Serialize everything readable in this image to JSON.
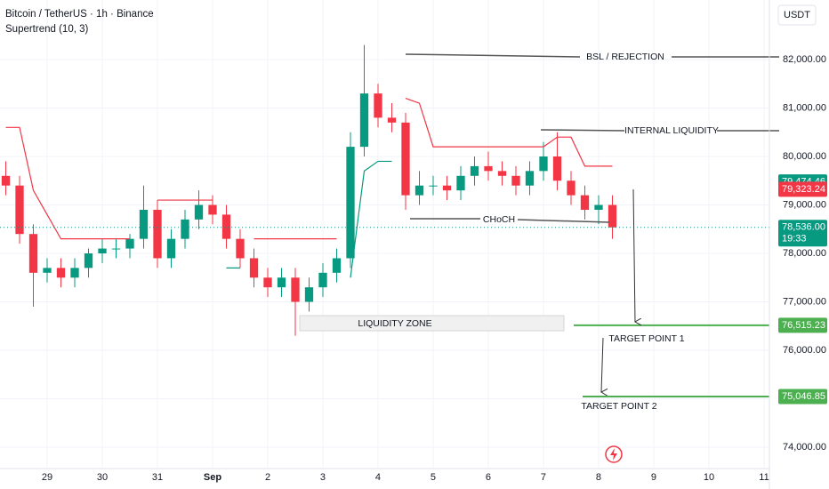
{
  "header": {
    "symbol": "Bitcoin / TetherUS · 1h · Binance",
    "indicator": "Supertrend (10, 3)",
    "currency": "USDT"
  },
  "chart_data": {
    "type": "candlestick",
    "xlim": [
      -0.855,
      13.097
    ],
    "ylim": [
      73560,
      83229
    ],
    "xticks": [
      {
        "value": 0,
        "label": "29"
      },
      {
        "value": 1,
        "label": "30"
      },
      {
        "value": 2,
        "label": "31"
      },
      {
        "value": 3,
        "label": "Sep"
      },
      {
        "value": 4,
        "label": "2"
      },
      {
        "value": 5,
        "label": "3"
      },
      {
        "value": 6,
        "label": "4"
      },
      {
        "value": 7,
        "label": "5"
      },
      {
        "value": 8,
        "label": "6"
      },
      {
        "value": 9,
        "label": "7"
      },
      {
        "value": 10,
        "label": "8"
      },
      {
        "value": 11,
        "label": "9"
      },
      {
        "value": 12,
        "label": "10"
      },
      {
        "value": 13,
        "label": "11"
      }
    ],
    "yticks": [
      {
        "value": 74000,
        "label": "74,000.00"
      },
      {
        "value": 75000,
        "label": "75,000.00"
      },
      {
        "value": 76000,
        "label": "76,000.00"
      },
      {
        "value": 77000,
        "label": "77,000.00"
      },
      {
        "value": 78000,
        "label": "78,000.00"
      },
      {
        "value": 79000,
        "label": "79,000.00"
      },
      {
        "value": 80000,
        "label": "80,000.00"
      },
      {
        "value": 81000,
        "label": "81,000.00"
      },
      {
        "value": 82000,
        "label": "82,000.00"
      }
    ],
    "grid": true,
    "up_color": "#089981",
    "down_color": "#f23645",
    "x": [
      -0.75,
      -0.5,
      -0.25,
      0,
      0.25,
      0.5,
      0.75,
      1,
      1.25,
      1.5,
      1.75,
      2,
      2.25,
      2.5,
      2.75,
      3,
      3.25,
      3.5,
      3.75,
      4,
      4.25,
      4.5,
      4.75,
      5,
      5.25,
      5.5,
      5.75,
      6,
      6.25,
      6.5,
      6.75,
      7,
      7.25,
      7.5,
      7.75,
      8,
      8.25,
      8.5,
      8.75,
      9,
      9.25,
      9.5,
      9.75,
      10,
      10.25
    ],
    "open": [
      79600,
      79400,
      78400,
      77600,
      77700,
      77500,
      77700,
      78000,
      78100,
      78100,
      78300,
      78900,
      77900,
      78300,
      78700,
      79000,
      78800,
      78300,
      77900,
      77500,
      77300,
      77500,
      77000,
      77300,
      77600,
      77900,
      80200,
      81300,
      80800,
      80700,
      79200,
      79400,
      79400,
      79300,
      79600,
      79800,
      79700,
      79600,
      79400,
      79700,
      80000,
      79500,
      79200,
      78900,
      79000
    ],
    "high": [
      79900,
      79600,
      78600,
      77900,
      77900,
      77900,
      78100,
      78300,
      78300,
      78400,
      79400,
      79100,
      78500,
      78900,
      79300,
      79200,
      79000,
      78500,
      78100,
      77700,
      77700,
      77700,
      77500,
      77800,
      78100,
      80500,
      82300,
      81500,
      81100,
      80900,
      79700,
      79600,
      79600,
      79800,
      80000,
      80100,
      79900,
      79800,
      79900,
      80300,
      80500,
      79700,
      79400,
      79200,
      79200
    ],
    "low": [
      79200,
      78200,
      76900,
      77400,
      77300,
      77300,
      77500,
      77800,
      77900,
      77900,
      78100,
      77700,
      77700,
      78100,
      78500,
      78600,
      78100,
      77700,
      77300,
      77100,
      77100,
      76300,
      76800,
      77100,
      77400,
      77700,
      80000,
      80600,
      80500,
      78900,
      79000,
      79200,
      79100,
      79100,
      79400,
      79500,
      79400,
      79200,
      79200,
      79500,
      79300,
      79000,
      78700,
      78600,
      78300
    ],
    "close": [
      79400,
      78400,
      77600,
      77700,
      77500,
      77700,
      78000,
      78100,
      78100,
      78300,
      78900,
      77900,
      78300,
      78700,
      79000,
      78800,
      78300,
      77900,
      77500,
      77300,
      77500,
      77000,
      77300,
      77600,
      77900,
      80200,
      81300,
      80800,
      80700,
      79200,
      79400,
      79400,
      79300,
      79600,
      79800,
      79700,
      79600,
      79400,
      79700,
      80000,
      79500,
      79200,
      78900,
      79000,
      78536
    ],
    "series": [
      {
        "color": "#f23645",
        "values": [
          80600,
          80600,
          79300,
          78800,
          78300,
          78300,
          78300,
          78300,
          78300,
          78300,
          null,
          79100,
          79100,
          79100,
          79100,
          79100,
          null,
          null,
          78300,
          78300,
          78300,
          78300,
          78300,
          78300,
          78300,
          null,
          null,
          null,
          null,
          81200,
          81100,
          80200,
          80200,
          80200,
          80200,
          80200,
          80200,
          80200,
          80200,
          80200,
          80400,
          80400,
          79800,
          79800,
          79800
        ]
      },
      {
        "color": "#089981",
        "values": [
          null,
          null,
          null,
          null,
          null,
          null,
          null,
          null,
          null,
          null,
          78000,
          null,
          null,
          null,
          null,
          null,
          77700,
          77700,
          null,
          null,
          null,
          null,
          null,
          null,
          null,
          77500,
          79700,
          79900,
          79900,
          null,
          null,
          null,
          null,
          null,
          null,
          null,
          null,
          null,
          null,
          null,
          null,
          null,
          null,
          null,
          null
        ]
      }
    ],
    "price_labels": [
      {
        "value": 79474.46,
        "label": "79,474.46",
        "color": "#089981"
      },
      {
        "value": 79323.24,
        "label": "79,323.24",
        "color": "#f23645"
      },
      {
        "value": 78536,
        "label": "78,536.00",
        "color": "#089981",
        "sub": "19:33"
      },
      {
        "value": 76515.23,
        "label": "76,515.23",
        "color": "#4caf50"
      },
      {
        "value": 75046.85,
        "label": "75,046.85",
        "color": "#4caf50"
      }
    ],
    "annotations": [
      "BSL / REJECTION",
      "INTERNAL LIQUIDITY",
      "CHoCH",
      "LIQUIDITY ZONE",
      "TARGET POINT 1",
      "TARGET POINT 2"
    ]
  }
}
